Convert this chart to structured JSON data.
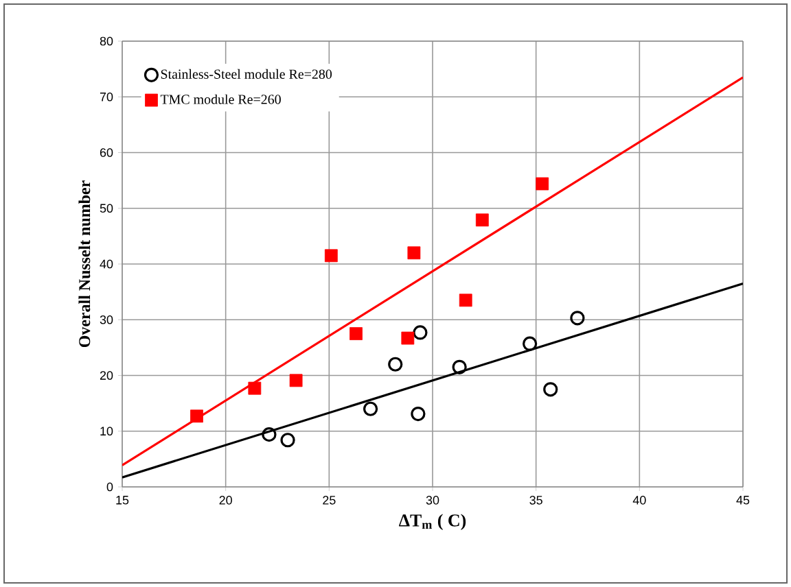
{
  "chart_data": {
    "type": "scatter",
    "xlabel": "ΔT$_{m}$ ( C)",
    "ylabel": "Overall Nusselt number",
    "xlim": [
      15,
      45
    ],
    "ylim": [
      0,
      80
    ],
    "xticks": [
      15,
      20,
      25,
      30,
      35,
      40,
      45
    ],
    "yticks": [
      0,
      10,
      20,
      30,
      40,
      50,
      60,
      70,
      80
    ],
    "grid": true,
    "legend": "top left",
    "series": [
      {
        "name": "Stainless-Steel module Re=280",
        "color": "#000000",
        "marker": "circle",
        "x": [
          22.1,
          23.0,
          27.0,
          28.2,
          29.4,
          29.3,
          31.3,
          34.7,
          35.7,
          37.0
        ],
        "values": [
          9.4,
          8.4,
          14.0,
          22.0,
          27.7,
          13.1,
          21.5,
          25.7,
          17.5,
          30.3
        ]
      },
      {
        "name": "TMC module Re=260",
        "color": "#ff0000",
        "marker": "square",
        "x": [
          18.6,
          21.4,
          23.4,
          25.1,
          26.3,
          28.8,
          29.1,
          31.6,
          32.4,
          35.3
        ],
        "values": [
          12.7,
          17.7,
          19.1,
          41.5,
          27.5,
          26.7,
          42.0,
          33.5,
          47.9,
          54.4
        ]
      },
      {
        "type": "line",
        "color": "#000000",
        "marker": "none",
        "x": [
          15,
          45
        ],
        "values": [
          1.7,
          36.5
        ]
      },
      {
        "type": "line",
        "color": "#ff0000",
        "marker": "none",
        "x": [
          15,
          45
        ],
        "values": [
          3.9,
          73.5
        ]
      }
    ]
  }
}
